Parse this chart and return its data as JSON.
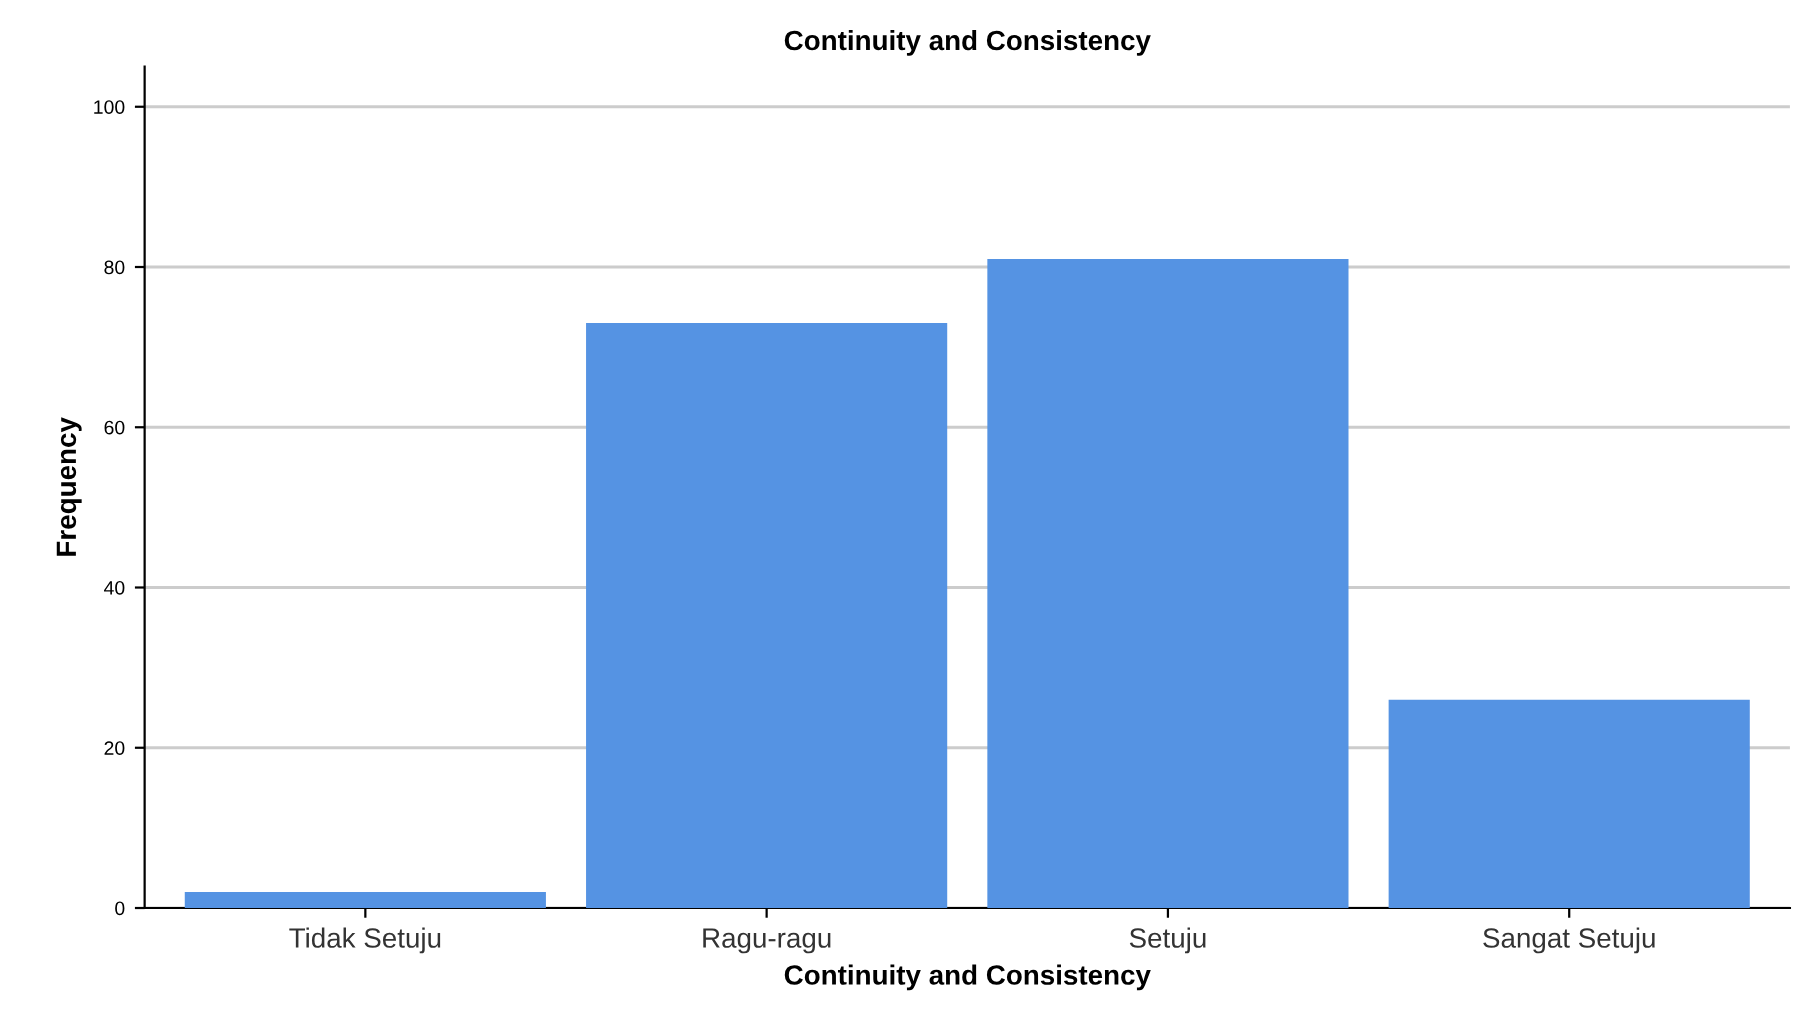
{
  "chart_data": {
    "type": "bar",
    "title": "Continuity and Consistency",
    "xlabel": "Continuity and Consistency",
    "ylabel": "Frequency",
    "categories": [
      "Tidak Setuju",
      "Ragu-ragu",
      "Setuju",
      "Sangat Setuju"
    ],
    "values": [
      2,
      73,
      81,
      26
    ],
    "color": "#5593e3",
    "ylim": [
      0,
      105
    ],
    "yticks": [
      0,
      20,
      40,
      60,
      80,
      100
    ],
    "grid": "y"
  }
}
